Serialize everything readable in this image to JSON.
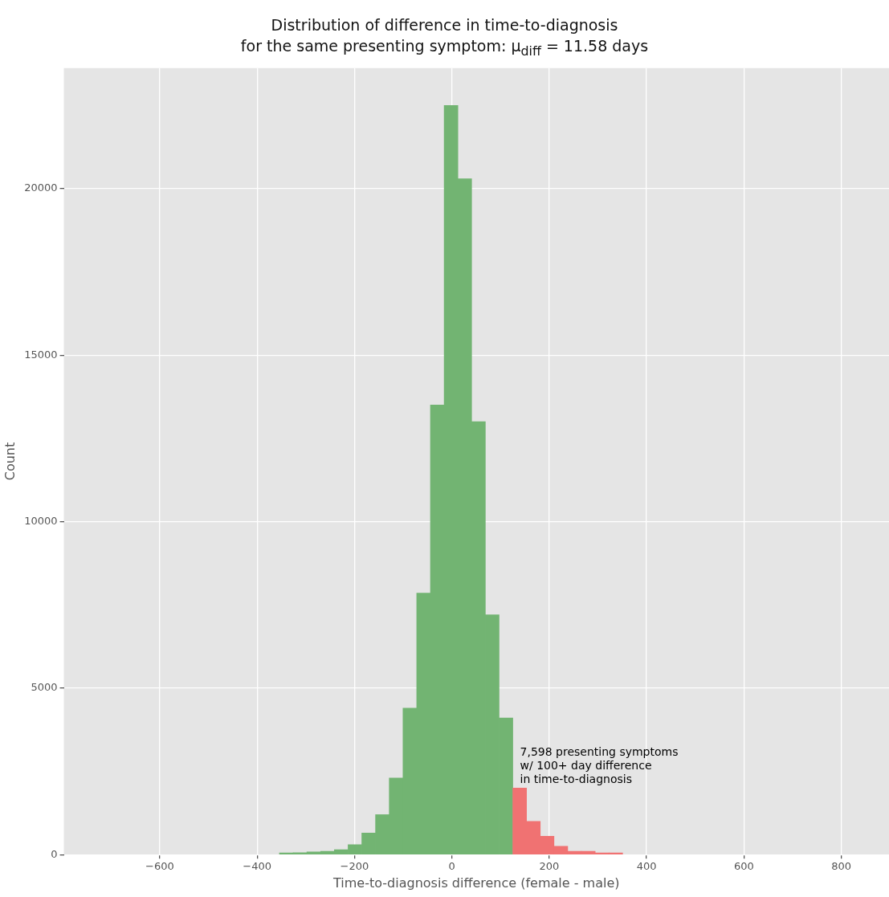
{
  "chart_data": {
    "type": "histogram",
    "title": "Distribution of difference in time-to-diagnosis",
    "subtitle": "for the same presenting symptom: μ$_{diff}$ = 11.58 days",
    "xlabel": "Time-to-diagnosis difference (female - male)",
    "ylabel": "Count",
    "bins": [
      -354.2,
      -326,
      -297.8,
      -269.6,
      -241.4,
      -213.2,
      -185,
      -156.8,
      -128.6,
      -100.4,
      -72.2,
      -44,
      -15.8,
      12.4,
      40.6,
      68.8,
      97,
      125.2,
      153.4,
      181.6,
      209.8,
      238,
      266.2,
      294.4,
      322.6,
      350.8
    ],
    "values": [
      50,
      60,
      80,
      100,
      150,
      300,
      650,
      1200,
      2300,
      4400,
      7850,
      13500,
      22500,
      20300,
      13000,
      7200,
      4100,
      2000,
      1000,
      550,
      250,
      100,
      100,
      50,
      50
    ],
    "colors": [
      "#72b472",
      "#72b472",
      "#72b472",
      "#72b472",
      "#72b472",
      "#72b472",
      "#72b472",
      "#72b472",
      "#72b472",
      "#72b472",
      "#72b472",
      "#72b472",
      "#72b472",
      "#72b472",
      "#72b472",
      "#72b472",
      "#72b472",
      "#f07272",
      "#f07272",
      "#f07272",
      "#f07272",
      "#f07272",
      "#f07272",
      "#f07272",
      "#f07272"
    ],
    "xlim": [
      -797,
      898
    ],
    "xticks": [
      -600,
      -400,
      -200,
      0,
      200,
      400,
      600,
      800
    ],
    "ylim": [
      0,
      23620
    ],
    "yticks": [
      0,
      5000,
      10000,
      15000,
      20000
    ],
    "grid": true,
    "legend": false,
    "annotations": [
      {
        "text": "7,598 presenting symptoms\nw/ 100+ day difference\nin time-to-diagnosis",
        "x": 140,
        "y": 2070
      }
    ]
  }
}
